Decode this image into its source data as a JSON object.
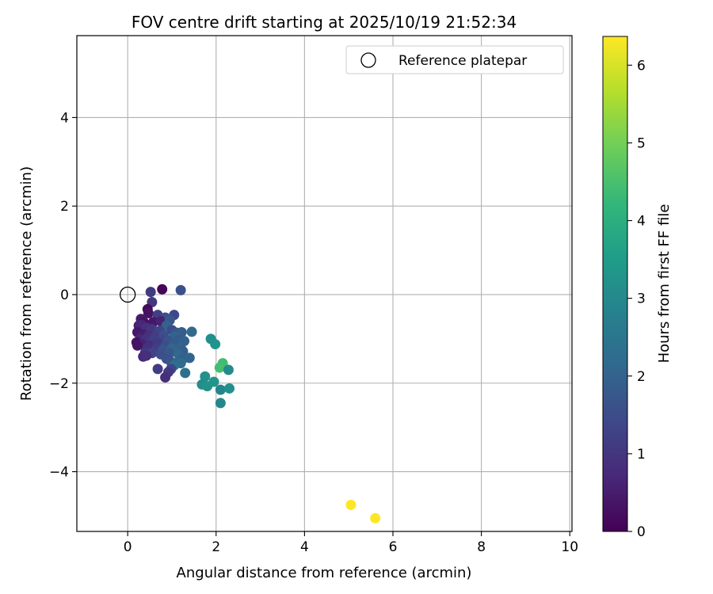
{
  "chart_data": {
    "type": "scatter",
    "title": "FOV centre drift starting at 2025/10/19 21:52:34",
    "xlabel": "Angular distance from reference (arcmin)",
    "ylabel": "Rotation from reference (arcmin)",
    "xlim": [
      -1.15,
      10.05
    ],
    "ylim": [
      -5.35,
      5.85
    ],
    "xticks": [
      0,
      2,
      4,
      6,
      8,
      10
    ],
    "yticks": [
      -4,
      -2,
      0,
      2,
      4
    ],
    "xtick_labels": [
      "0",
      "2",
      "4",
      "6",
      "8",
      "10"
    ],
    "ytick_labels": [
      "−4",
      "−2",
      "0",
      "2",
      "4"
    ],
    "grid": true,
    "legend": {
      "position": "top-right",
      "label": "Reference platepar"
    },
    "reference_point": {
      "x": 0,
      "y": 0
    },
    "colorbar": {
      "label": "Hours from first FF file",
      "range": [
        0,
        6.37
      ],
      "ticks": [
        0,
        1,
        2,
        3,
        4,
        5,
        6
      ],
      "tick_labels": [
        "0",
        "1",
        "2",
        "3",
        "4",
        "5",
        "6"
      ],
      "colormap": "viridis"
    },
    "points": [
      {
        "x": 0.78,
        "y": 0.12,
        "t": 0.1
      },
      {
        "x": 1.2,
        "y": 0.1,
        "t": 1.6
      },
      {
        "x": 0.52,
        "y": 0.06,
        "t": 1.1
      },
      {
        "x": 0.55,
        "y": -0.17,
        "t": 1.0
      },
      {
        "x": 0.45,
        "y": -0.33,
        "t": 0.15
      },
      {
        "x": 0.47,
        "y": -0.42,
        "t": 0.3
      },
      {
        "x": 0.68,
        "y": -0.46,
        "t": 1.2
      },
      {
        "x": 1.05,
        "y": -0.46,
        "t": 1.4
      },
      {
        "x": 0.85,
        "y": -0.52,
        "t": 1.5
      },
      {
        "x": 0.3,
        "y": -0.55,
        "t": 0.45
      },
      {
        "x": 0.36,
        "y": -0.62,
        "t": 0.3
      },
      {
        "x": 0.58,
        "y": -0.62,
        "t": 0.4
      },
      {
        "x": 0.75,
        "y": -0.6,
        "t": 0.6
      },
      {
        "x": 0.95,
        "y": -0.58,
        "t": 1.75
      },
      {
        "x": 0.88,
        "y": -0.7,
        "t": 2.0
      },
      {
        "x": 0.25,
        "y": -0.7,
        "t": 0.55
      },
      {
        "x": 0.3,
        "y": -0.68,
        "t": 0.7
      },
      {
        "x": 0.42,
        "y": -0.75,
        "t": 0.9
      },
      {
        "x": 0.55,
        "y": -0.78,
        "t": 1.05
      },
      {
        "x": 0.72,
        "y": -0.82,
        "t": 1.3
      },
      {
        "x": 1.0,
        "y": -0.8,
        "t": 1.45
      },
      {
        "x": 1.1,
        "y": -0.86,
        "t": 1.7
      },
      {
        "x": 1.22,
        "y": -0.85,
        "t": 1.9
      },
      {
        "x": 1.45,
        "y": -0.84,
        "t": 2.2
      },
      {
        "x": 0.22,
        "y": -0.85,
        "t": 0.4
      },
      {
        "x": 0.35,
        "y": -0.9,
        "t": 0.5
      },
      {
        "x": 0.48,
        "y": -0.93,
        "t": 0.85
      },
      {
        "x": 0.62,
        "y": -0.95,
        "t": 1.15
      },
      {
        "x": 0.82,
        "y": -0.92,
        "t": 1.55
      },
      {
        "x": 1.05,
        "y": -0.95,
        "t": 2.05
      },
      {
        "x": 0.28,
        "y": -1.0,
        "t": 0.65
      },
      {
        "x": 0.4,
        "y": -1.02,
        "t": 0.95
      },
      {
        "x": 0.58,
        "y": -1.05,
        "t": 1.25
      },
      {
        "x": 0.78,
        "y": -1.02,
        "t": 1.4
      },
      {
        "x": 0.92,
        "y": -1.05,
        "t": 1.65
      },
      {
        "x": 1.15,
        "y": -1.02,
        "t": 1.85
      },
      {
        "x": 1.28,
        "y": -1.05,
        "t": 1.95
      },
      {
        "x": 0.2,
        "y": -1.08,
        "t": 0.25
      },
      {
        "x": 0.32,
        "y": -1.12,
        "t": 0.6
      },
      {
        "x": 0.5,
        "y": -1.15,
        "t": 0.8
      },
      {
        "x": 0.68,
        "y": -1.1,
        "t": 1.1
      },
      {
        "x": 0.85,
        "y": -1.15,
        "t": 1.5
      },
      {
        "x": 1.05,
        "y": -1.12,
        "t": 1.8
      },
      {
        "x": 0.22,
        "y": -1.15,
        "t": 0.35
      },
      {
        "x": 0.45,
        "y": -1.2,
        "t": 0.9
      },
      {
        "x": 0.65,
        "y": -1.22,
        "t": 1.2
      },
      {
        "x": 0.8,
        "y": -1.25,
        "t": 1.7
      },
      {
        "x": 1.0,
        "y": -1.22,
        "t": 2.1
      },
      {
        "x": 1.2,
        "y": -1.2,
        "t": 2.0
      },
      {
        "x": 1.25,
        "y": -1.28,
        "t": 1.9
      },
      {
        "x": 0.4,
        "y": -1.3,
        "t": 1.05
      },
      {
        "x": 0.55,
        "y": -1.32,
        "t": 1.3
      },
      {
        "x": 0.75,
        "y": -1.35,
        "t": 1.55
      },
      {
        "x": 0.95,
        "y": -1.32,
        "t": 1.75
      },
      {
        "x": 1.15,
        "y": -1.35,
        "t": 2.15
      },
      {
        "x": 0.35,
        "y": -1.4,
        "t": 0.7
      },
      {
        "x": 0.42,
        "y": -1.38,
        "t": 0.85
      },
      {
        "x": 0.88,
        "y": -1.45,
        "t": 1.6
      },
      {
        "x": 1.25,
        "y": -1.45,
        "t": 1.95
      },
      {
        "x": 1.4,
        "y": -1.43,
        "t": 2.05
      },
      {
        "x": 0.98,
        "y": -1.52,
        "t": 1.7
      },
      {
        "x": 1.1,
        "y": -1.55,
        "t": 2.0
      },
      {
        "x": 1.2,
        "y": -1.55,
        "t": 2.25
      },
      {
        "x": 1.05,
        "y": -1.6,
        "t": 2.3
      },
      {
        "x": 0.98,
        "y": -1.68,
        "t": 1.35
      },
      {
        "x": 0.68,
        "y": -1.68,
        "t": 1.15
      },
      {
        "x": 0.92,
        "y": -1.75,
        "t": 1.1
      },
      {
        "x": 1.3,
        "y": -1.77,
        "t": 2.35
      },
      {
        "x": 0.85,
        "y": -1.87,
        "t": 0.85
      },
      {
        "x": 1.88,
        "y": -1.0,
        "t": 3.15
      },
      {
        "x": 1.98,
        "y": -1.12,
        "t": 3.3
      },
      {
        "x": 2.15,
        "y": -1.55,
        "t": 4.4
      },
      {
        "x": 2.08,
        "y": -1.65,
        "t": 4.45
      },
      {
        "x": 2.28,
        "y": -1.7,
        "t": 3.05
      },
      {
        "x": 1.75,
        "y": -1.85,
        "t": 3.2
      },
      {
        "x": 1.95,
        "y": -1.97,
        "t": 3.3
      },
      {
        "x": 1.68,
        "y": -2.03,
        "t": 3.1
      },
      {
        "x": 1.8,
        "y": -2.07,
        "t": 3.25
      },
      {
        "x": 2.1,
        "y": -2.15,
        "t": 2.9
      },
      {
        "x": 2.3,
        "y": -2.12,
        "t": 3.15
      },
      {
        "x": 2.1,
        "y": -2.45,
        "t": 2.95
      },
      {
        "x": 5.05,
        "y": -4.75,
        "t": 6.35
      },
      {
        "x": 5.6,
        "y": -5.05,
        "t": 6.37
      }
    ]
  }
}
